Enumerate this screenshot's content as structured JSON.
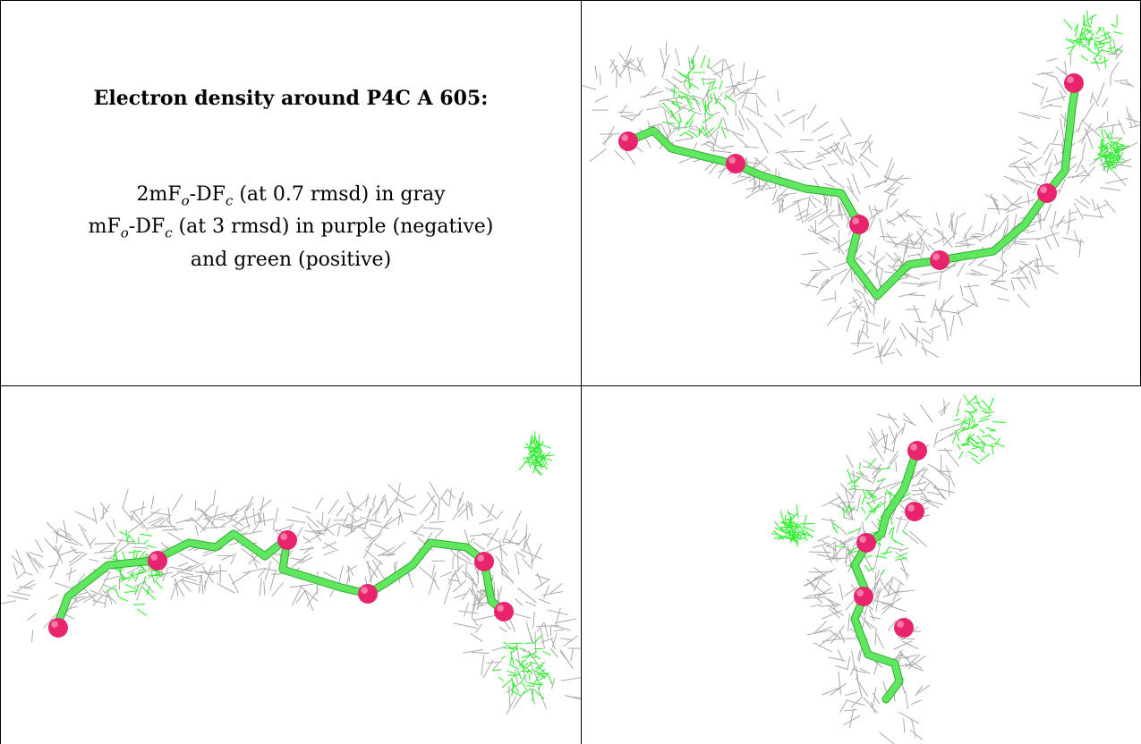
{
  "caption": {
    "title": "Electron density around P4C A 605:",
    "legend_lines": [
      {
        "prefix": "2mF",
        "sub1": "o",
        "mid": "-DF",
        "sub2": "c",
        "suffix": " (at 0.7 rmsd) in gray"
      },
      {
        "prefix": "mF",
        "sub1": "o",
        "mid": "-DF",
        "sub2": "c",
        "suffix": " (at 3 rmsd) in purple (negative)"
      },
      {
        "text": "and green (positive)"
      }
    ]
  },
  "colors": {
    "mesh_2fofc": "#a9a9a9",
    "mesh_fofc_positive": "#33ee33",
    "mesh_fofc_negative": "#9933cc",
    "carbon_stick": "#5fe85f",
    "oxygen_atom": "#e8246e",
    "border": "#000000"
  },
  "panels": [
    {
      "name": "view-1"
    },
    {
      "name": "view-2"
    },
    {
      "name": "view-3"
    }
  ]
}
